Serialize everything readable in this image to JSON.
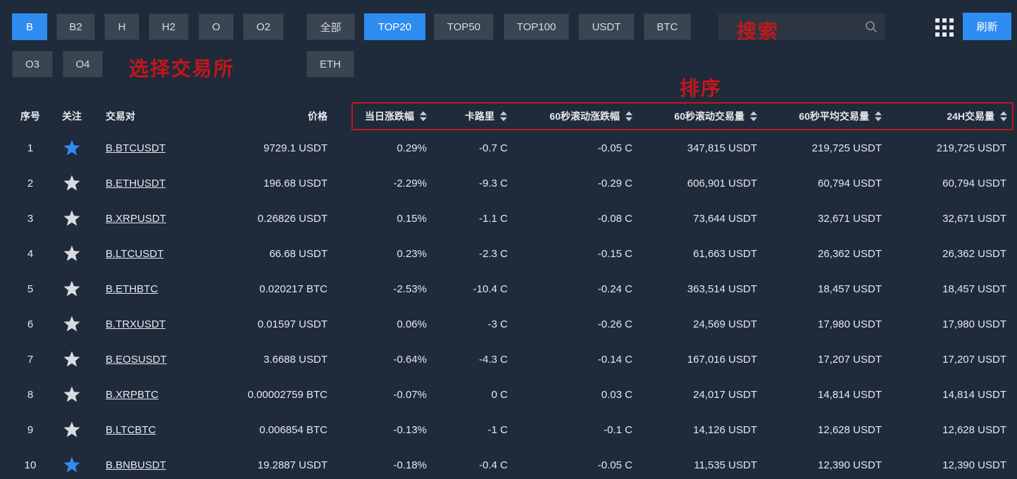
{
  "exchanges": {
    "row1": [
      {
        "label": "B",
        "active": true
      },
      {
        "label": "B2",
        "active": false
      },
      {
        "label": "H",
        "active": false
      },
      {
        "label": "H2",
        "active": false
      },
      {
        "label": "O",
        "active": false
      },
      {
        "label": "O2",
        "active": false
      }
    ],
    "row2": [
      {
        "label": "O3",
        "active": false
      },
      {
        "label": "O4",
        "active": false
      }
    ]
  },
  "filters": {
    "row1": [
      {
        "label": "全部",
        "active": false
      },
      {
        "label": "TOP20",
        "active": true
      },
      {
        "label": "TOP50",
        "active": false
      },
      {
        "label": "TOP100",
        "active": false
      },
      {
        "label": "USDT",
        "active": false
      },
      {
        "label": "BTC",
        "active": false
      }
    ],
    "row2": [
      {
        "label": "ETH",
        "active": false
      }
    ]
  },
  "search": {
    "value": "",
    "placeholder": ""
  },
  "refresh_label": "刷新",
  "annotations": {
    "select_exchange": "选择交易所",
    "search": "搜索",
    "sort": "排序"
  },
  "colors": {
    "accent": "#2f8cf0",
    "star_active": "#2f8cf0",
    "star_inactive": "#d8dbe0",
    "annotation": "#c0181b",
    "background": "#1f2a3a"
  },
  "table": {
    "headers": {
      "index": "序号",
      "follow": "关注",
      "pair": "交易对",
      "price": "价格",
      "daily_change": "当日涨跌幅",
      "calorie": "卡路里",
      "roll_change_60s": "60秒滚动涨跌幅",
      "roll_volume_60s": "60秒滚动交易量",
      "avg_volume_60s": "60秒平均交易量",
      "volume_24h": "24H交易量"
    },
    "rows": [
      {
        "index": "1",
        "starred": true,
        "pair": "B.BTCUSDT",
        "price": "9729.1 USDT",
        "daily_change": "0.29%",
        "calorie": "-0.7 C",
        "roll_change_60s": "-0.05 C",
        "roll_volume_60s": "347,815 USDT",
        "avg_volume_60s": "219,725 USDT",
        "volume_24h": "219,725 USDT"
      },
      {
        "index": "2",
        "starred": false,
        "pair": "B.ETHUSDT",
        "price": "196.68 USDT",
        "daily_change": "-2.29%",
        "calorie": "-9.3 C",
        "roll_change_60s": "-0.29 C",
        "roll_volume_60s": "606,901 USDT",
        "avg_volume_60s": "60,794 USDT",
        "volume_24h": "60,794 USDT"
      },
      {
        "index": "3",
        "starred": false,
        "pair": "B.XRPUSDT",
        "price": "0.26826 USDT",
        "daily_change": "0.15%",
        "calorie": "-1.1 C",
        "roll_change_60s": "-0.08 C",
        "roll_volume_60s": "73,644 USDT",
        "avg_volume_60s": "32,671 USDT",
        "volume_24h": "32,671 USDT"
      },
      {
        "index": "4",
        "starred": false,
        "pair": "B.LTCUSDT",
        "price": "66.68 USDT",
        "daily_change": "0.23%",
        "calorie": "-2.3 C",
        "roll_change_60s": "-0.15 C",
        "roll_volume_60s": "61,663 USDT",
        "avg_volume_60s": "26,362 USDT",
        "volume_24h": "26,362 USDT"
      },
      {
        "index": "5",
        "starred": false,
        "pair": "B.ETHBTC",
        "price": "0.020217 BTC",
        "daily_change": "-2.53%",
        "calorie": "-10.4 C",
        "roll_change_60s": "-0.24 C",
        "roll_volume_60s": "363,514 USDT",
        "avg_volume_60s": "18,457 USDT",
        "volume_24h": "18,457 USDT"
      },
      {
        "index": "6",
        "starred": false,
        "pair": "B.TRXUSDT",
        "price": "0.01597 USDT",
        "daily_change": "0.06%",
        "calorie": "-3 C",
        "roll_change_60s": "-0.26 C",
        "roll_volume_60s": "24,569 USDT",
        "avg_volume_60s": "17,980 USDT",
        "volume_24h": "17,980 USDT"
      },
      {
        "index": "7",
        "starred": false,
        "pair": "B.EOSUSDT",
        "price": "3.6688 USDT",
        "daily_change": "-0.64%",
        "calorie": "-4.3 C",
        "roll_change_60s": "-0.14 C",
        "roll_volume_60s": "167,016 USDT",
        "avg_volume_60s": "17,207 USDT",
        "volume_24h": "17,207 USDT"
      },
      {
        "index": "8",
        "starred": false,
        "pair": "B.XRPBTC",
        "price": "0.00002759 BTC",
        "daily_change": "-0.07%",
        "calorie": "0 C",
        "roll_change_60s": "0.03 C",
        "roll_volume_60s": "24,017 USDT",
        "avg_volume_60s": "14,814 USDT",
        "volume_24h": "14,814 USDT"
      },
      {
        "index": "9",
        "starred": false,
        "pair": "B.LTCBTC",
        "price": "0.006854 BTC",
        "daily_change": "-0.13%",
        "calorie": "-1 C",
        "roll_change_60s": "-0.1 C",
        "roll_volume_60s": "14,126 USDT",
        "avg_volume_60s": "12,628 USDT",
        "volume_24h": "12,628 USDT"
      },
      {
        "index": "10",
        "starred": true,
        "pair": "B.BNBUSDT",
        "price": "19.2887 USDT",
        "daily_change": "-0.18%",
        "calorie": "-0.4 C",
        "roll_change_60s": "-0.05 C",
        "roll_volume_60s": "11,535 USDT",
        "avg_volume_60s": "12,390 USDT",
        "volume_24h": "12,390 USDT"
      }
    ]
  }
}
